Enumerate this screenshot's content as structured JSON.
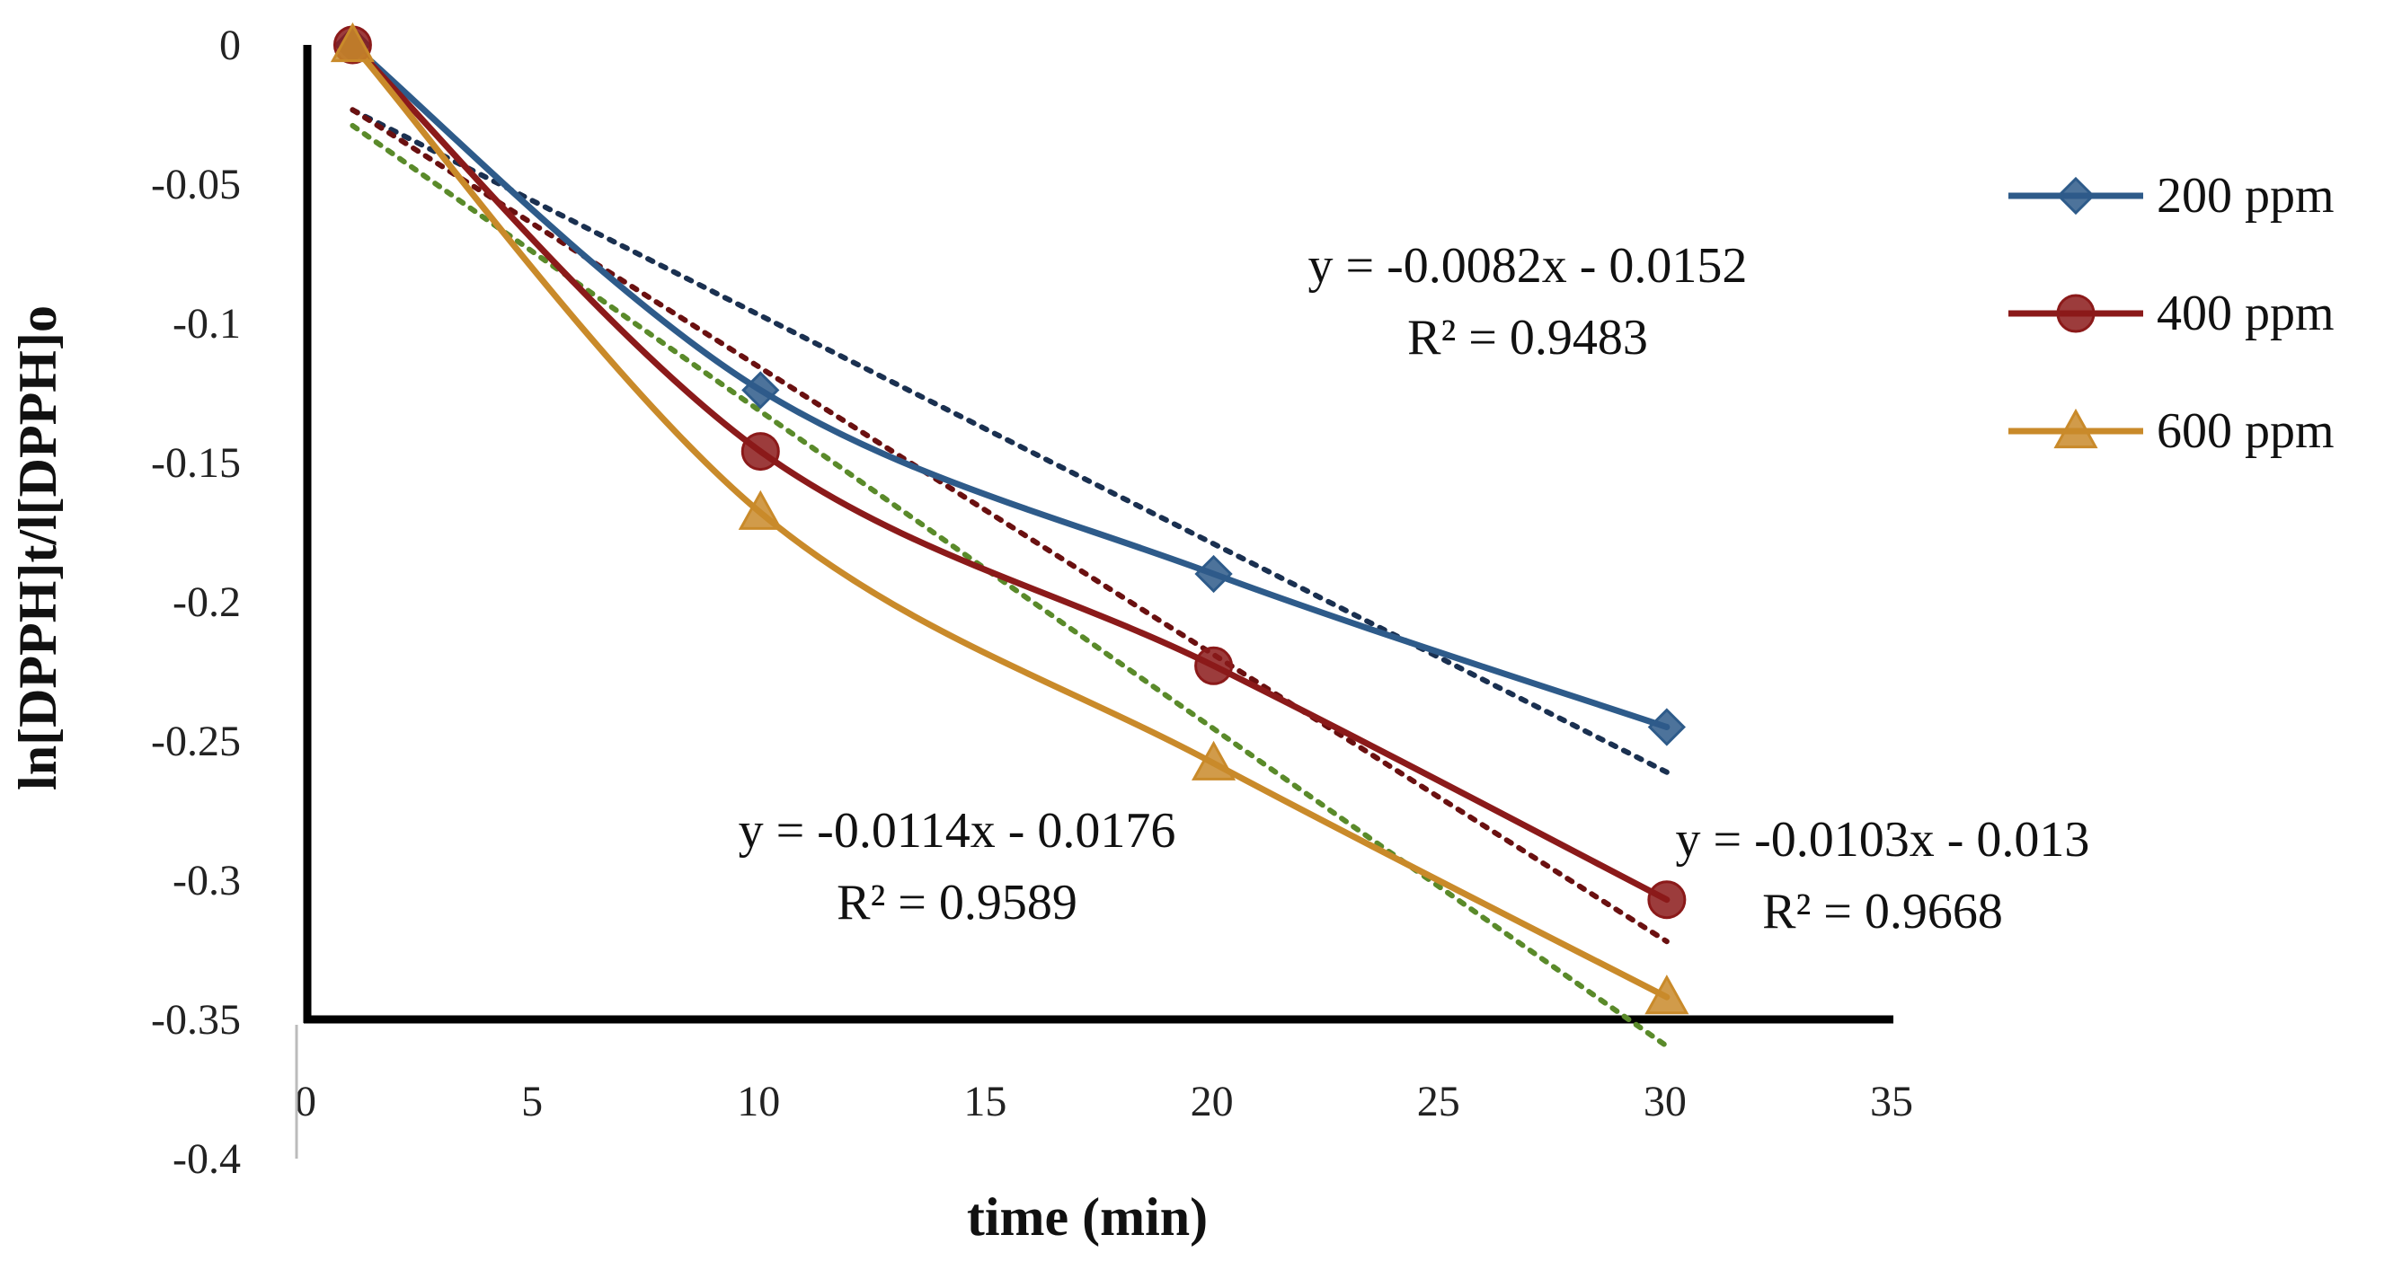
{
  "chart_data": {
    "type": "line",
    "title": "",
    "xlabel": "time (min)",
    "ylabel": "ln[DPPH]t/l[DPPH]o",
    "xlim": [
      0,
      35
    ],
    "ylim": [
      -0.4,
      0
    ],
    "xticks": [
      0,
      5,
      10,
      15,
      20,
      25,
      30,
      35
    ],
    "xtick_labels": [
      "0",
      "5",
      "10",
      "15",
      "20",
      "25",
      "30",
      "35"
    ],
    "yticks": [
      0,
      -0.05,
      -0.1,
      -0.15,
      -0.2,
      -0.25,
      -0.3,
      -0.35,
      -0.4
    ],
    "ytick_labels": [
      "0",
      "-0.05",
      "-0.1",
      "-0.15",
      "-0.2",
      "-0.25",
      "-0.3",
      "-0.35",
      "-0.4"
    ],
    "x_axis_crosses_at_y": -0.35,
    "grid": false,
    "legend_position": "right",
    "series": [
      {
        "name": "200 ppm",
        "color": "#2e5b8a",
        "marker": "diamond",
        "x": [
          1,
          10,
          20,
          30
        ],
        "y": [
          0,
          -0.124,
          -0.19,
          -0.245
        ],
        "trendline": {
          "slope": -0.0082,
          "intercept": -0.0152,
          "color": "#1a3050",
          "from": 1,
          "to": 30
        },
        "equation": "y = -0.0082x - 0.0152",
        "r_squared": "R² = 0.9483"
      },
      {
        "name": "400 ppm",
        "color": "#8b1a1a",
        "marker": "circle",
        "x": [
          1,
          10,
          20,
          30
        ],
        "y": [
          0,
          -0.146,
          -0.223,
          -0.307
        ],
        "trendline": {
          "slope": -0.0103,
          "intercept": -0.013,
          "color": "#6a1010",
          "from": 1,
          "to": 30
        },
        "equation": "y = -0.0103x - 0.013",
        "r_squared": "R² = 0.9668"
      },
      {
        "name": "600 ppm",
        "color": "#c98a2a",
        "marker": "triangle",
        "x": [
          1,
          10,
          20,
          30
        ],
        "y": [
          0,
          -0.168,
          -0.258,
          -0.342
        ],
        "trendline": {
          "slope": -0.0114,
          "intercept": -0.0176,
          "color": "#5a8a2a",
          "from": 1,
          "to": 30
        },
        "equation": "y = -0.0114x - 0.0176",
        "r_squared": "R² = 0.9589"
      }
    ]
  }
}
